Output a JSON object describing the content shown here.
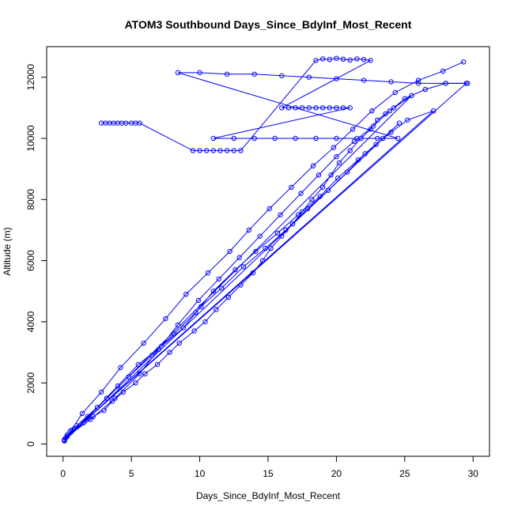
{
  "chart_data": {
    "type": "scatter",
    "title": "ATOM3 Southbound Days_Since_BdyInf_Most_Recent",
    "xlabel": "Days_Since_BdyInf_Most_Recent",
    "ylabel": "Altitude (m)",
    "xlim": [
      -1.2,
      31.2
    ],
    "ylim": [
      -400,
      13000
    ],
    "x_ticks": [
      0,
      5,
      10,
      15,
      20,
      25,
      30
    ],
    "y_ticks": [
      0,
      2000,
      4000,
      6000,
      8000,
      10000,
      12000
    ],
    "grid": false,
    "legend": "none",
    "style": "points connected by lines (open circles)",
    "series": [
      {
        "color": "#0000ff",
        "x": [
          0.1,
          0.3,
          0.8,
          1.5,
          2.2,
          3.0,
          3.6,
          4.4,
          5.3,
          6.0,
          6.9,
          7.8,
          8.5,
          9.6,
          10.4,
          11.2,
          12.1,
          13.0,
          13.9,
          14.6,
          15.2,
          16.0,
          16.8,
          17.5,
          18.2,
          19.0,
          19.6,
          20.2,
          21.0,
          21.8,
          22.5,
          23.0,
          23.6,
          24.2,
          25.0,
          26.5,
          28.0,
          29.5,
          0.2,
          1.0,
          2.5,
          4.0,
          5.5,
          7.2,
          8.8,
          10.1,
          11.6,
          13.2,
          14.8,
          16.3,
          17.9,
          19.4,
          20.8,
          22.1,
          23.4,
          24.6,
          0.1,
          0.5,
          1.8,
          3.2,
          4.8,
          6.5,
          8.1,
          9.7,
          11.0,
          12.6,
          14.1,
          15.7,
          17.2,
          18.8,
          20.1,
          21.6,
          22.9,
          24.0,
          25.2,
          27.1,
          0.3,
          2.0,
          3.8,
          5.6,
          7.0,
          8.4,
          9.9,
          11.4,
          12.9,
          14.4,
          15.9,
          17.4,
          18.7,
          20.0,
          21.3,
          22.7,
          23.9,
          25.5,
          0.1,
          0.6,
          1.4,
          2.8,
          4.2,
          5.9,
          7.5,
          9.0,
          10.6,
          12.2,
          13.6,
          15.1,
          16.7,
          18.3,
          19.8,
          21.2,
          22.6,
          24.3,
          26.0,
          27.8,
          29.3
        ],
        "y": [
          150,
          300,
          500,
          700,
          900,
          1100,
          1400,
          1700,
          2000,
          2300,
          2600,
          3000,
          3300,
          3700,
          4000,
          4400,
          4800,
          5200,
          5600,
          6000,
          6400,
          6800,
          7200,
          7600,
          8000,
          8400,
          8800,
          9200,
          9600,
          10000,
          10300,
          10600,
          10800,
          11000,
          11300,
          11600,
          11800,
          11800,
          200,
          600,
          1200,
          1900,
          2600,
          3200,
          3800,
          4500,
          5100,
          5800,
          6400,
          7000,
          7700,
          8300,
          8900,
          9500,
          10000,
          10500,
          100,
          400,
          900,
          1500,
          2200,
          2900,
          3600,
          4300,
          5000,
          5700,
          6300,
          6900,
          7500,
          8100,
          8700,
          9300,
          9800,
          10200,
          10600,
          10900,
          250,
          800,
          1500,
          2300,
          3100,
          3900,
          4700,
          5400,
          6100,
          6800,
          7500,
          8200,
          8800,
          9400,
          9900,
          10400,
          10900,
          11400,
          120,
          450,
          1000,
          1700,
          2500,
          3300,
          4100,
          4900,
          5600,
          6300,
          7000,
          7700,
          8400,
          9100,
          9700,
          10300,
          10900,
          11500,
          11900,
          12200,
          12500
        ]
      },
      {
        "color": "#0000ff",
        "x": [
          2.8,
          3.1,
          3.4,
          3.7,
          4.0,
          4.3,
          4.6,
          5.0,
          5.3,
          5.6,
          9.5,
          10.0,
          10.5,
          11.0,
          11.5,
          12.0,
          12.5,
          13.0,
          18.5,
          19.0,
          19.5,
          20.0,
          20.5,
          21.0,
          21.5,
          22.0,
          22.5,
          16.0,
          16.5,
          17.0,
          17.5,
          18.0,
          18.5,
          19.0,
          19.5,
          20.0,
          20.5,
          21.0,
          11.0,
          12.5,
          14.0,
          15.5,
          17.0,
          18.5,
          20.0,
          21.5,
          23.0,
          24.5,
          8.4,
          10.0,
          12.0,
          14.0,
          16.0,
          18.0,
          20.0,
          22.0,
          24.0,
          26.0,
          28.0,
          29.6
        ],
        "y": [
          10500,
          10500,
          10500,
          10500,
          10500,
          10500,
          10500,
          10500,
          10500,
          10500,
          9600,
          9600,
          9600,
          9600,
          9600,
          9600,
          9600,
          9600,
          12550,
          12600,
          12580,
          12620,
          12590,
          12560,
          12600,
          12580,
          12550,
          11000,
          11000,
          11000,
          11000,
          11000,
          11000,
          11000,
          11000,
          11000,
          11000,
          11000,
          10000,
          10000,
          10000,
          10000,
          10000,
          10000,
          10000,
          10000,
          10000,
          10000,
          12150,
          12150,
          12100,
          12100,
          12050,
          12000,
          11950,
          11900,
          11850,
          11800,
          11800,
          11800
        ]
      }
    ]
  }
}
